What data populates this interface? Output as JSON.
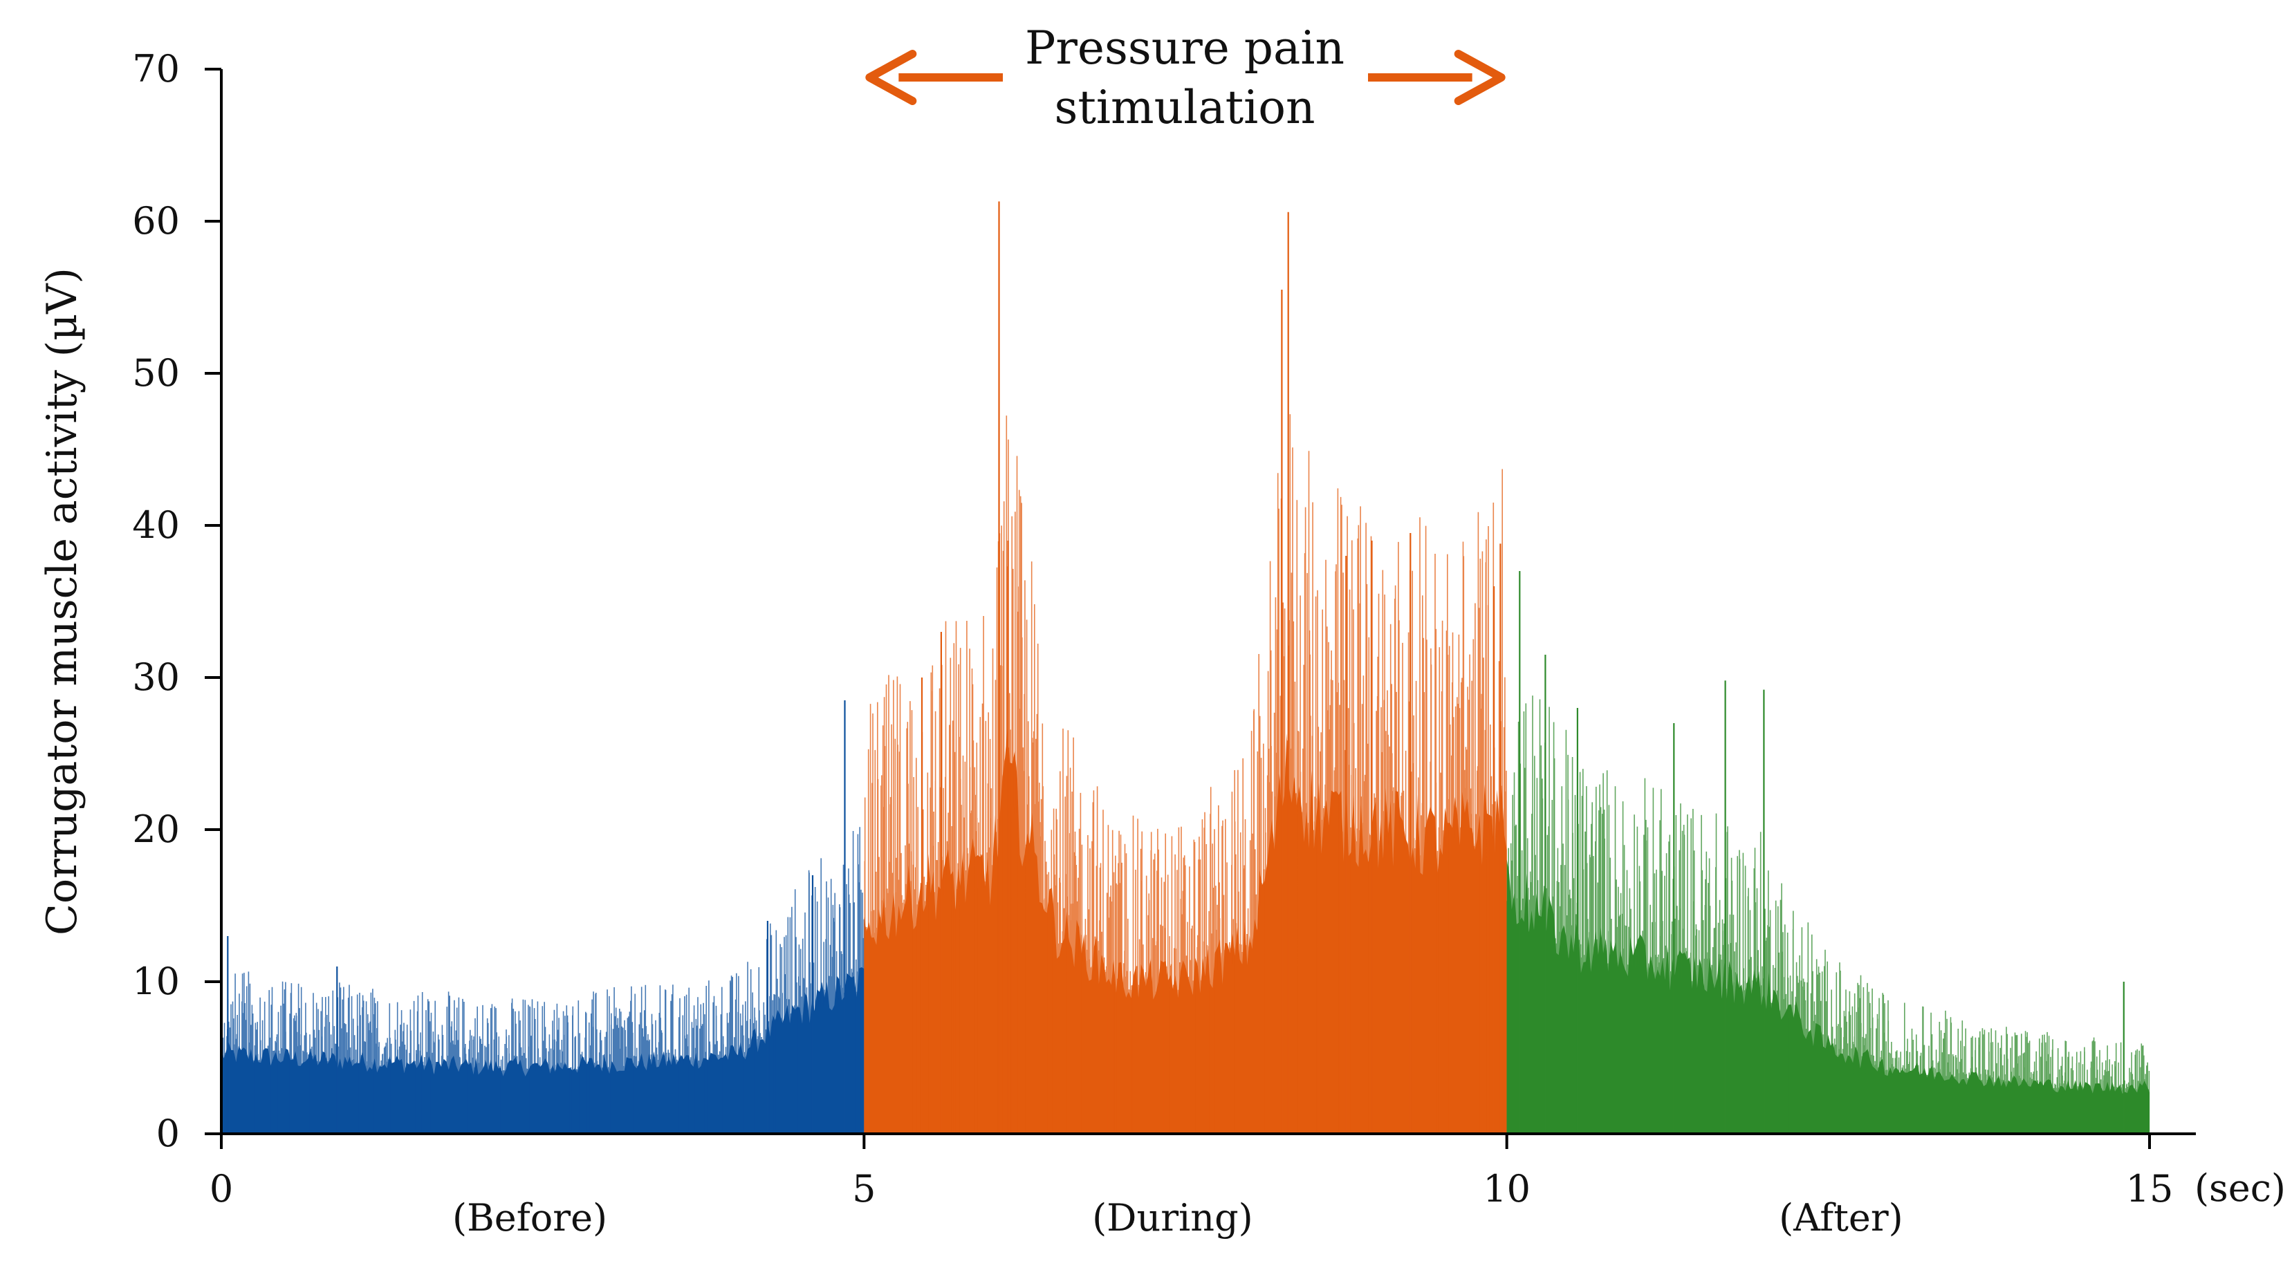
{
  "chart_data": {
    "type": "area",
    "title": "",
    "xlabel": "",
    "x_unit_label": "(sec)",
    "ylabel": "Corrugator muscle activity (µV)",
    "xlim": [
      0,
      15
    ],
    "ylim": [
      0,
      70
    ],
    "x_ticks": [
      "0",
      "5",
      "10",
      "15"
    ],
    "y_ticks": [
      "0",
      "10",
      "20",
      "30",
      "40",
      "50",
      "60",
      "70"
    ],
    "grid": false,
    "legend": "none",
    "annotation": {
      "lines": [
        "Pressure pain",
        "stimulation"
      ],
      "span": [
        5,
        10
      ],
      "arrow_color": "#e35b0e"
    },
    "phase_labels": [
      {
        "text": "(Before)",
        "x": 2.4
      },
      {
        "text": "(During)",
        "x": 7.4
      },
      {
        "text": "(After)",
        "x": 12.6
      }
    ],
    "series": [
      {
        "color": "#0b4f9c",
        "x": [
          0,
          0.5,
          1,
          1.5,
          2,
          2.5,
          3,
          3.5,
          4,
          4.5,
          5
        ],
        "envelope": [
          5.5,
          5.2,
          5.0,
          4.8,
          4.6,
          4.6,
          4.8,
          5.0,
          5.4,
          8.5,
          10.5
        ],
        "peaks": [
          {
            "x": 0.05,
            "y": 13
          },
          {
            "x": 0.9,
            "y": 11
          },
          {
            "x": 4.25,
            "y": 14
          },
          {
            "x": 4.6,
            "y": 17
          },
          {
            "x": 4.85,
            "y": 28.5
          }
        ]
      },
      {
        "color": "#e35b0e",
        "x": [
          5,
          5.5,
          6,
          6.1,
          6.5,
          7,
          7.5,
          8,
          8.3,
          8.5,
          9,
          9.5,
          10
        ],
        "envelope": [
          14,
          17,
          18,
          25,
          14,
          10.5,
          10.5,
          13,
          25,
          22,
          21,
          20,
          22
        ],
        "peaks": [
          {
            "x": 5.45,
            "y": 30
          },
          {
            "x": 5.6,
            "y": 33
          },
          {
            "x": 6.05,
            "y": 61.3
          },
          {
            "x": 6.12,
            "y": 39
          },
          {
            "x": 8.25,
            "y": 55.5
          },
          {
            "x": 8.3,
            "y": 60.6
          },
          {
            "x": 8.75,
            "y": 38
          },
          {
            "x": 8.95,
            "y": 39
          },
          {
            "x": 9.25,
            "y": 39.5
          },
          {
            "x": 9.9,
            "y": 36
          },
          {
            "x": 9.95,
            "y": 38.8
          }
        ]
      },
      {
        "color": "#2e8a2b",
        "x": [
          10,
          10.5,
          11,
          11.5,
          12,
          12.5,
          13,
          13.5,
          14,
          14.5,
          15
        ],
        "envelope": [
          17,
          13,
          12,
          11,
          10,
          6,
          4.5,
          4,
          3.5,
          3.2,
          3.2
        ],
        "peaks": [
          {
            "x": 10.1,
            "y": 37
          },
          {
            "x": 10.3,
            "y": 31.5
          },
          {
            "x": 10.55,
            "y": 28
          },
          {
            "x": 11.3,
            "y": 27
          },
          {
            "x": 11.7,
            "y": 29.8
          },
          {
            "x": 12.0,
            "y": 29.2
          },
          {
            "x": 14.8,
            "y": 10
          }
        ]
      }
    ]
  }
}
